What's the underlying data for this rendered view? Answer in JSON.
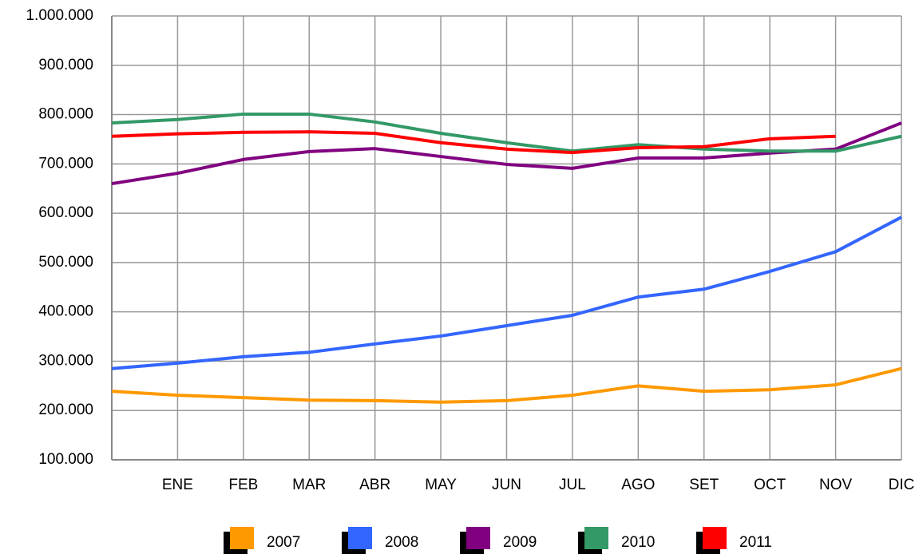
{
  "chart_data": {
    "type": "line",
    "categories": [
      null,
      "ENE",
      "FEB",
      "MAR",
      "ABR",
      "MAY",
      "JUN",
      "JUL",
      "AGO",
      "SET",
      "OCT",
      "NOV",
      "DIC"
    ],
    "series": [
      {
        "name": "2007",
        "color": "#ff9900",
        "values": [
          239000,
          231000,
          226000,
          221000,
          220000,
          217000,
          220000,
          231000,
          250000,
          239000,
          242000,
          252000,
          285000
        ]
      },
      {
        "name": "2008",
        "color": "#3366ff",
        "values": [
          285000,
          296000,
          309000,
          318000,
          335000,
          351000,
          372000,
          393000,
          430000,
          446000,
          482000,
          522000,
          592000
        ]
      },
      {
        "name": "2009",
        "color": "#800080",
        "values": [
          660000,
          681000,
          709000,
          725000,
          731000,
          715000,
          699000,
          691000,
          712000,
          712000,
          722000,
          730000,
          783000
        ]
      },
      {
        "name": "2010",
        "color": "#339966",
        "values": [
          783000,
          790000,
          801000,
          801000,
          785000,
          762000,
          743000,
          726000,
          739000,
          730000,
          726000,
          726000,
          756000
        ]
      },
      {
        "name": "2011",
        "color": "#ff0000",
        "values": [
          756000,
          761000,
          764000,
          765000,
          762000,
          743000,
          730000,
          723000,
          733000,
          735000,
          751000,
          756000,
          null
        ]
      }
    ],
    "ylim": [
      100000,
      1000000
    ],
    "yticks": [
      {
        "value": 100000,
        "label": "100.000"
      },
      {
        "value": 200000,
        "label": "200.000"
      },
      {
        "value": 300000,
        "label": "300.000"
      },
      {
        "value": 400000,
        "label": "400.000"
      },
      {
        "value": 500000,
        "label": "500.000"
      },
      {
        "value": 600000,
        "label": "600.000"
      },
      {
        "value": 700000,
        "label": "700.000"
      },
      {
        "value": 800000,
        "label": "800.000"
      },
      {
        "value": 900000,
        "label": "900.000"
      },
      {
        "value": 1000000,
        "label": "1.000.000"
      }
    ],
    "grid": true,
    "legend": "bottom"
  }
}
